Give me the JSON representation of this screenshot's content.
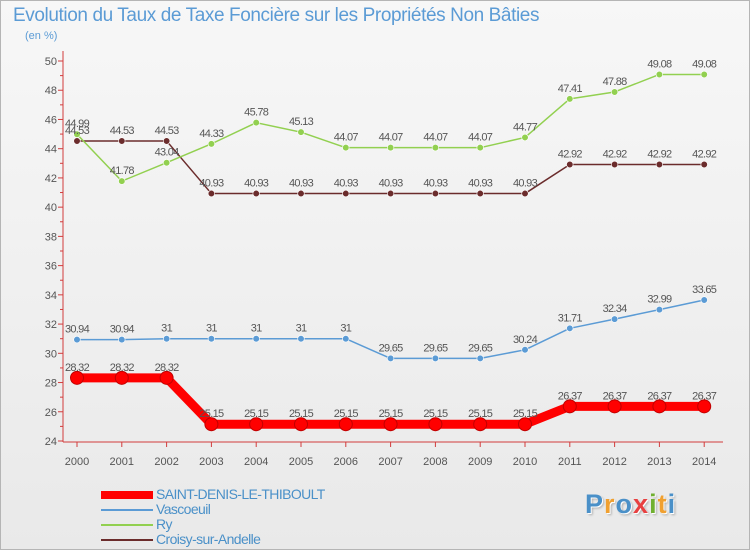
{
  "chart_data": {
    "type": "line",
    "title": "Evolution du Taux de Taxe Foncière sur les Propriétés Non Bâties",
    "units_label": "(en %)",
    "x": [
      "2000",
      "2001",
      "2002",
      "2003",
      "2004",
      "2005",
      "2006",
      "2007",
      "2008",
      "2009",
      "2010",
      "2011",
      "2012",
      "2013",
      "2014"
    ],
    "ylim": [
      24,
      50
    ],
    "y_ticks": [
      24,
      26,
      28,
      30,
      32,
      34,
      36,
      38,
      40,
      42,
      44,
      46,
      48,
      50
    ],
    "grid": false,
    "series": [
      {
        "name": "SAINT-DENIS-LE-THIBOULT",
        "color": "#ff0000",
        "values": [
          28.32,
          28.32,
          28.32,
          25.15,
          25.15,
          25.15,
          25.15,
          25.15,
          25.15,
          25.15,
          25.15,
          26.37,
          26.37,
          26.37,
          26.37
        ]
      },
      {
        "name": "Vascoeuil",
        "color": "#5b9bd5",
        "values": [
          30.94,
          30.94,
          31,
          31,
          31,
          31,
          31,
          29.65,
          29.65,
          29.65,
          30.24,
          31.71,
          32.34,
          32.99,
          33.65
        ]
      },
      {
        "name": "Ry",
        "color": "#92d050",
        "values": [
          44.99,
          41.78,
          43.04,
          44.33,
          45.78,
          45.13,
          44.07,
          44.07,
          44.07,
          44.07,
          44.77,
          47.41,
          47.88,
          49.08,
          49.08
        ]
      },
      {
        "name": "Croisy-sur-Andelle",
        "color": "#6b2c2c",
        "values": [
          44.53,
          44.53,
          44.53,
          40.93,
          40.93,
          40.93,
          40.93,
          40.93,
          40.93,
          40.93,
          40.93,
          42.92,
          42.92,
          42.92,
          42.92
        ]
      }
    ]
  },
  "logo": {
    "text": "Proxiti",
    "colors": [
      "#4a90c8",
      "#f0a030",
      "#4a90c8",
      "#e84040",
      "#70b030",
      "#f0a030",
      "#4a90c8"
    ]
  }
}
